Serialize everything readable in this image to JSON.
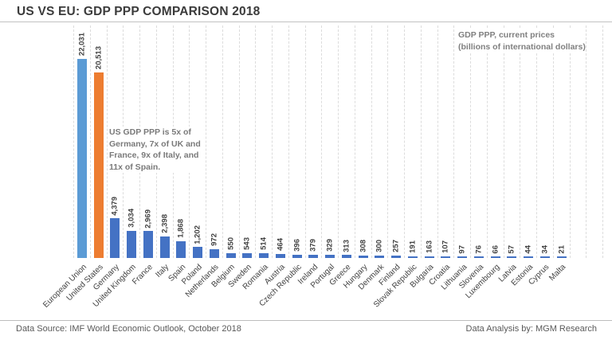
{
  "header": {
    "title": "US VS EU: GDP PPP COMPARISON 2018"
  },
  "axis_note": {
    "line1": "GDP PPP, current prices",
    "line2": "(billions of international dollars)"
  },
  "annotation": {
    "text": "US GDP PPP is 5x of Germany, 7x of UK and France, 9x of Italy, and 11x of Spain."
  },
  "footer": {
    "left": "Data Source: IMF World Economic Outlook, October 2018",
    "right": "Data Analysis by: MGM Research"
  },
  "chart_data": {
    "type": "bar",
    "title": "US VS EU: GDP PPP COMPARISON 2018",
    "xlabel": "",
    "ylabel": "GDP PPP, current prices (billions of international dollars)",
    "ylim": [
      0,
      22031
    ],
    "grid": "vertical-dashed",
    "legend_position": "none",
    "value_label_rotation": 90,
    "category_label_rotation": 45,
    "categories": [
      "European Union",
      "United States",
      "Germany",
      "United Kingdom",
      "France",
      "Italy",
      "Spain",
      "Poland",
      "Netherlands",
      "Belgium",
      "Sweden",
      "Romania",
      "Austria",
      "Czech Republic",
      "Ireland",
      "Portugal",
      "Greece",
      "Hungary",
      "Denmark",
      "Finland",
      "Slovak Republic",
      "Bulgaria",
      "Croatia",
      "Lithuania",
      "Slovenia",
      "Luxembourg",
      "Latvia",
      "Estonia",
      "Cyprus",
      "Malta"
    ],
    "values": [
      22031,
      20513,
      4379,
      3034,
      2969,
      2398,
      1868,
      1202,
      972,
      550,
      543,
      514,
      464,
      396,
      379,
      329,
      313,
      308,
      300,
      257,
      191,
      163,
      107,
      97,
      76,
      66,
      57,
      44,
      34,
      21
    ],
    "value_labels": [
      "22,031",
      "20,513",
      "4,379",
      "3,034",
      "2,969",
      "2,398",
      "1,868",
      "1,202",
      "972",
      "550",
      "543",
      "514",
      "464",
      "396",
      "379",
      "329",
      "313",
      "308",
      "300",
      "257",
      "191",
      "163",
      "107",
      "97",
      "76",
      "66",
      "57",
      "44",
      "34",
      "21"
    ],
    "bar_color_rules": {
      "European Union": "#5B9BD5",
      "United States": "#ED7D31",
      "default": "#4472C4"
    },
    "gridline_color": "#dcdcdc",
    "trailing_empty_columns": 2
  }
}
